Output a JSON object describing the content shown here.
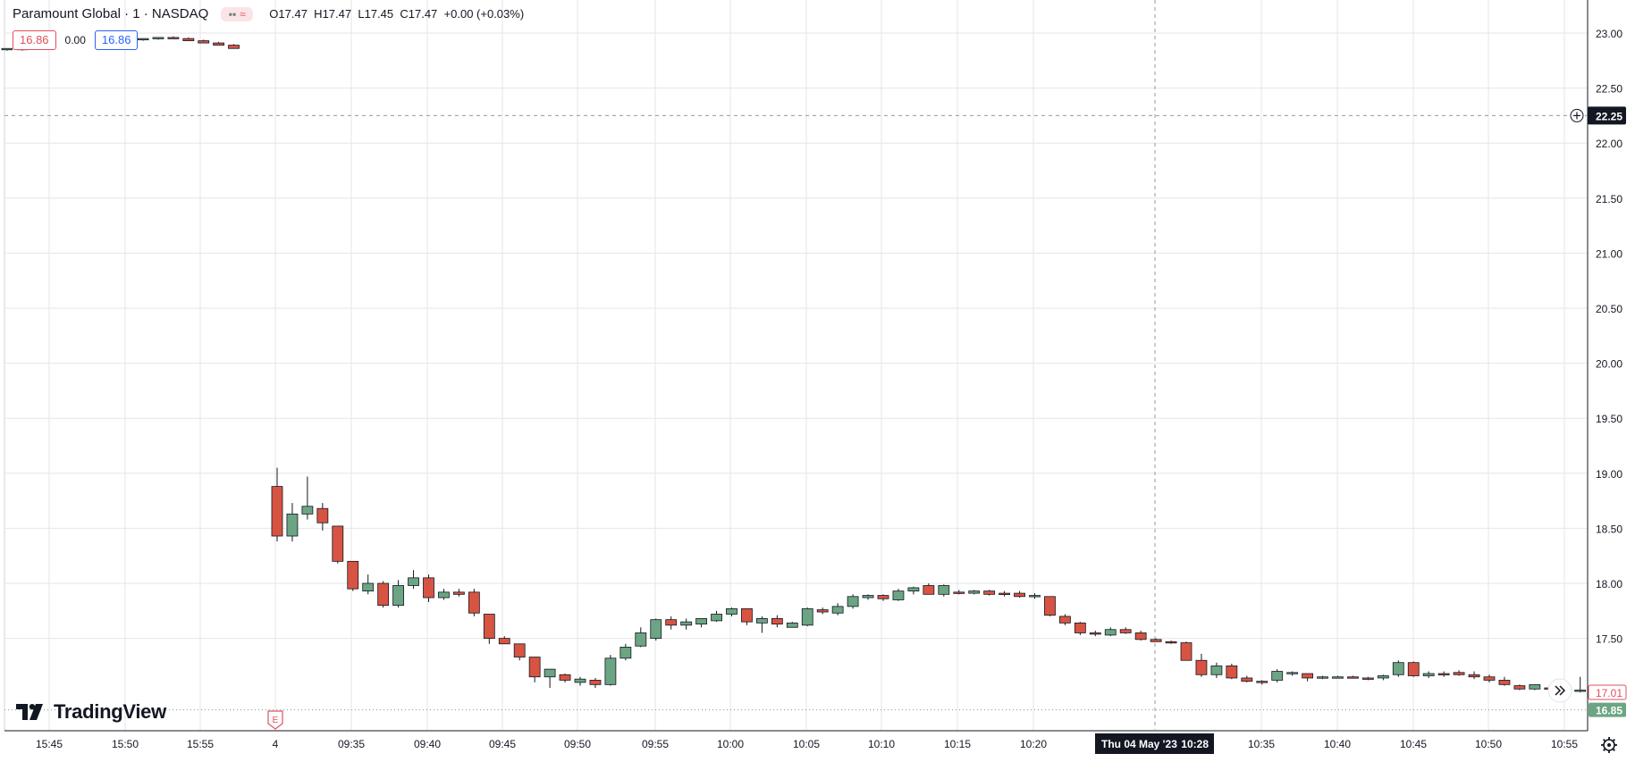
{
  "header": {
    "symbol": "Paramount Global · 1 · NASDAQ",
    "status_grey": "••",
    "status_red": "≈",
    "open_label": "O",
    "open": "17.47",
    "high_label": "H",
    "high": "17.47",
    "low_label": "L",
    "low": "17.45",
    "close_label": "C",
    "close": "17.47",
    "change": "+0.00 (+0.03%)"
  },
  "trade": {
    "sell": "16.86",
    "spread": "0.00",
    "buy": "16.86"
  },
  "brand": "TradingView",
  "earnings_marker": "E",
  "crosshair": {
    "date_label": "Thu 04 May '23",
    "time_label": "10:28",
    "price_label": "22.25"
  },
  "price_badges": {
    "last": "17.01",
    "bid": "16.85"
  },
  "colors": {
    "up": "#6ba583",
    "down": "#d75442",
    "last": "#e0515f",
    "bid": "#6ba583",
    "grid": "#e6e6e6"
  },
  "chart_data": {
    "type": "candlestick",
    "y_ticks": [
      "23.00",
      "22.50",
      "22.00",
      "21.50",
      "21.00",
      "20.50",
      "20.00",
      "19.50",
      "19.00",
      "18.50",
      "18.00",
      "17.50"
    ],
    "ylim": [
      16.6,
      23.3
    ],
    "x_ticks": [
      "15:45",
      "15:50",
      "15:55",
      "4",
      "09:35",
      "09:40",
      "09:45",
      "09:50",
      "09:55",
      "10:00",
      "10:05",
      "10:10",
      "10:15",
      "10:20",
      "10:35",
      "10:40",
      "10:45",
      "10:50",
      "10:55"
    ],
    "candles": [
      [
        22.85,
        22.86,
        22.84,
        22.86
      ],
      [
        22.85,
        22.86,
        22.84,
        22.86
      ],
      [
        22.86,
        22.87,
        22.85,
        22.87
      ],
      [
        22.87,
        22.88,
        22.86,
        22.88
      ],
      [
        22.88,
        22.9,
        22.87,
        22.9
      ],
      [
        22.9,
        22.92,
        22.89,
        22.92
      ],
      [
        22.92,
        22.94,
        22.91,
        22.93
      ],
      [
        22.94,
        22.95,
        22.92,
        22.92
      ],
      [
        22.92,
        22.94,
        22.91,
        22.94
      ],
      [
        22.94,
        22.95,
        22.93,
        22.95
      ],
      [
        22.95,
        22.96,
        22.94,
        22.96
      ],
      [
        22.96,
        22.97,
        22.95,
        22.95
      ],
      [
        22.95,
        22.96,
        22.93,
        22.93
      ],
      [
        22.93,
        22.94,
        22.91,
        22.91
      ],
      [
        22.91,
        22.92,
        22.89,
        22.89
      ],
      [
        22.89,
        22.9,
        22.86,
        22.86
      ],
      [
        18.88,
        19.05,
        18.38,
        18.43
      ],
      [
        18.43,
        18.73,
        18.38,
        18.63
      ],
      [
        18.63,
        18.97,
        18.58,
        18.7
      ],
      [
        18.68,
        18.73,
        18.48,
        18.55
      ],
      [
        18.52,
        18.52,
        18.18,
        18.2
      ],
      [
        18.2,
        18.2,
        17.93,
        17.95
      ],
      [
        17.93,
        18.08,
        17.9,
        18.0
      ],
      [
        18.0,
        18.02,
        17.78,
        17.8
      ],
      [
        17.8,
        18.03,
        17.78,
        17.98
      ],
      [
        17.98,
        18.12,
        17.95,
        18.05
      ],
      [
        18.05,
        18.08,
        17.83,
        17.87
      ],
      [
        17.87,
        17.95,
        17.85,
        17.92
      ],
      [
        17.92,
        17.95,
        17.88,
        17.9
      ],
      [
        17.92,
        17.95,
        17.7,
        17.73
      ],
      [
        17.72,
        17.72,
        17.45,
        17.5
      ],
      [
        17.5,
        17.52,
        17.45,
        17.45
      ],
      [
        17.45,
        17.45,
        17.3,
        17.33
      ],
      [
        17.33,
        17.33,
        17.1,
        17.15
      ],
      [
        17.15,
        17.22,
        17.05,
        17.22
      ],
      [
        17.17,
        17.18,
        17.1,
        17.12
      ],
      [
        17.1,
        17.15,
        17.07,
        17.13
      ],
      [
        17.12,
        17.14,
        17.05,
        17.08
      ],
      [
        17.08,
        17.35,
        17.07,
        17.32
      ],
      [
        17.32,
        17.45,
        17.3,
        17.42
      ],
      [
        17.43,
        17.6,
        17.42,
        17.55
      ],
      [
        17.5,
        17.68,
        17.48,
        17.67
      ],
      [
        17.67,
        17.7,
        17.58,
        17.62
      ],
      [
        17.62,
        17.68,
        17.58,
        17.65
      ],
      [
        17.63,
        17.68,
        17.6,
        17.68
      ],
      [
        17.66,
        17.75,
        17.65,
        17.72
      ],
      [
        17.72,
        17.78,
        17.7,
        17.77
      ],
      [
        17.77,
        17.77,
        17.62,
        17.65
      ],
      [
        17.64,
        17.7,
        17.55,
        17.68
      ],
      [
        17.68,
        17.71,
        17.6,
        17.63
      ],
      [
        17.6,
        17.65,
        17.6,
        17.64
      ],
      [
        17.62,
        17.78,
        17.61,
        17.77
      ],
      [
        17.76,
        17.78,
        17.72,
        17.74
      ],
      [
        17.73,
        17.82,
        17.71,
        17.79
      ],
      [
        17.79,
        17.9,
        17.77,
        17.88
      ],
      [
        17.87,
        17.9,
        17.85,
        17.89
      ],
      [
        17.89,
        17.9,
        17.84,
        17.86
      ],
      [
        17.85,
        17.95,
        17.84,
        17.93
      ],
      [
        17.93,
        17.97,
        17.9,
        17.96
      ],
      [
        17.98,
        18.0,
        17.9,
        17.9
      ],
      [
        17.9,
        17.99,
        17.88,
        17.98
      ],
      [
        17.92,
        17.94,
        17.9,
        17.91
      ],
      [
        17.91,
        17.94,
        17.9,
        17.93
      ],
      [
        17.93,
        17.94,
        17.89,
        17.9
      ],
      [
        17.91,
        17.93,
        17.88,
        17.9
      ],
      [
        17.91,
        17.93,
        17.87,
        17.88
      ],
      [
        17.88,
        17.91,
        17.86,
        17.89
      ],
      [
        17.88,
        17.88,
        17.7,
        17.71
      ],
      [
        17.7,
        17.72,
        17.62,
        17.64
      ],
      [
        17.64,
        17.65,
        17.53,
        17.55
      ],
      [
        17.55,
        17.57,
        17.52,
        17.54
      ],
      [
        17.53,
        17.6,
        17.52,
        17.58
      ],
      [
        17.58,
        17.6,
        17.54,
        17.55
      ],
      [
        17.55,
        17.57,
        17.48,
        17.49
      ],
      [
        17.49,
        17.5,
        17.47,
        17.47
      ],
      [
        17.47,
        17.48,
        17.45,
        17.46
      ],
      [
        17.46,
        17.47,
        17.3,
        17.3
      ],
      [
        17.3,
        17.36,
        17.15,
        17.17
      ],
      [
        17.17,
        17.28,
        17.14,
        17.25
      ],
      [
        17.25,
        17.27,
        17.13,
        17.14
      ],
      [
        17.14,
        17.16,
        17.1,
        17.11
      ],
      [
        17.11,
        17.12,
        17.08,
        17.1
      ],
      [
        17.12,
        17.22,
        17.1,
        17.2
      ],
      [
        17.18,
        17.2,
        17.16,
        17.19
      ],
      [
        17.18,
        17.18,
        17.11,
        17.14
      ],
      [
        17.14,
        17.16,
        17.13,
        17.15
      ],
      [
        17.15,
        17.16,
        17.14,
        17.15
      ],
      [
        17.15,
        17.16,
        17.14,
        17.14
      ],
      [
        17.14,
        17.15,
        17.12,
        17.13
      ],
      [
        17.14,
        17.17,
        17.12,
        17.16
      ],
      [
        17.17,
        17.3,
        17.15,
        17.28
      ],
      [
        17.28,
        17.29,
        17.15,
        17.16
      ],
      [
        17.16,
        17.2,
        17.14,
        17.18
      ],
      [
        17.18,
        17.2,
        17.15,
        17.17
      ],
      [
        17.19,
        17.21,
        17.16,
        17.17
      ],
      [
        17.17,
        17.2,
        17.13,
        17.15
      ],
      [
        17.15,
        17.17,
        17.1,
        17.12
      ],
      [
        17.12,
        17.15,
        17.07,
        17.08
      ],
      [
        17.07,
        17.08,
        17.03,
        17.04
      ],
      [
        17.04,
        17.08,
        17.03,
        17.08
      ],
      [
        17.05,
        17.06,
        17.03,
        17.04
      ],
      [
        17.04,
        17.05,
        17.02,
        17.03
      ],
      [
        17.02,
        17.15,
        17.01,
        17.03
      ],
      [
        17.03,
        17.04,
        17.0,
        17.01
      ]
    ]
  }
}
